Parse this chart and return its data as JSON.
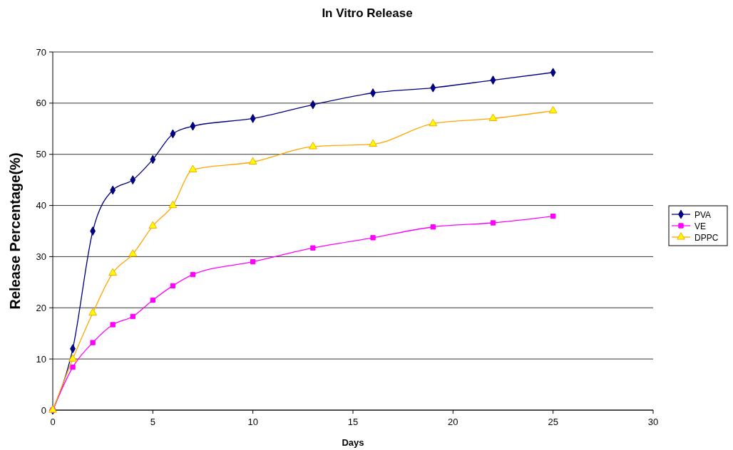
{
  "chart_data": {
    "type": "line",
    "title": "In Vitro Release",
    "xlabel": "Days",
    "ylabel": "Release Percentage(%)",
    "xlim": [
      0,
      30
    ],
    "xticks": [
      0,
      5,
      10,
      15,
      20,
      25,
      30
    ],
    "ylim": [
      0,
      70
    ],
    "yticks": [
      0,
      10,
      20,
      30,
      40,
      50,
      60,
      70
    ],
    "grid": "y",
    "legend": "right",
    "series": [
      {
        "name": "PVA",
        "color": "#000080",
        "marker": "diamond",
        "x": [
          0,
          1,
          2,
          3,
          4,
          5,
          6,
          7,
          10,
          13,
          16,
          19,
          22,
          25
        ],
        "values": [
          0,
          12,
          35,
          43,
          45,
          49,
          54,
          55.5,
          57,
          59.7,
          62,
          63,
          64.5,
          66
        ]
      },
      {
        "name": "VE",
        "color": "#ff00ff",
        "marker": "square",
        "x": [
          0,
          1,
          2,
          3,
          4,
          5,
          6,
          7,
          10,
          13,
          16,
          19,
          22,
          25
        ],
        "values": [
          0,
          8.4,
          13.2,
          16.7,
          18.3,
          21.5,
          24.3,
          26.5,
          29,
          31.7,
          33.7,
          35.8,
          36.6,
          37.9
        ]
      },
      {
        "name": "DPPC",
        "color": "#ffa500",
        "marker": "triangle",
        "x": [
          0,
          1,
          2,
          3,
          4,
          5,
          6,
          7,
          10,
          13,
          16,
          19,
          22,
          25
        ],
        "values": [
          0,
          10,
          19,
          26.8,
          30.5,
          36,
          40,
          47,
          48.5,
          51.5,
          52,
          56,
          57,
          58.5
        ]
      }
    ]
  }
}
